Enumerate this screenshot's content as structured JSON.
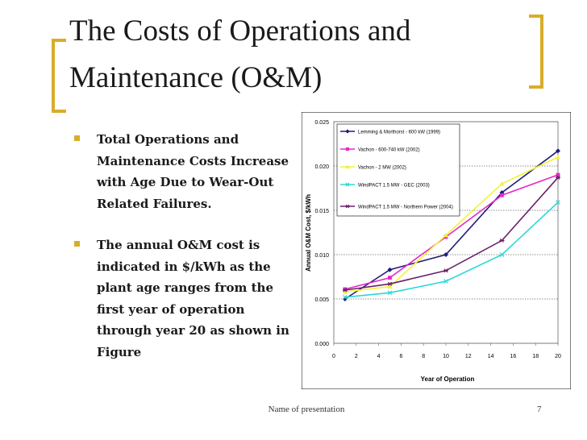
{
  "slide": {
    "title_line1": "The Costs of Operations and",
    "title_line2": "Maintenance (O&M)",
    "bullets": [
      "Total Operations and Maintenance Costs Increase with Age Due to Wear-Out Related Failures.",
      "The annual O&M cost is indicated in $/kWh as the plant age ranges from the first year of operation through year 20 as shown in Figure"
    ],
    "footer": "Name of presentation",
    "page_number": "7",
    "accent_color": "#d9ad2a"
  },
  "chart_data": {
    "type": "line",
    "title": "",
    "xlabel": "Year of Operation",
    "ylabel": "Annual O&M Cost, $/kWh",
    "xlim": [
      0,
      20
    ],
    "ylim": [
      0,
      0.025
    ],
    "x_ticks": [
      0,
      2,
      4,
      6,
      8,
      10,
      12,
      14,
      16,
      18,
      20
    ],
    "y_ticks": [
      0.0,
      0.005,
      0.01,
      0.015,
      0.02,
      0.025
    ],
    "y_tick_labels": [
      "0.000",
      "0.005",
      "0.010",
      "0.015",
      "0.020",
      "0.025"
    ],
    "grid": "horizontal",
    "legend_position": "top-left",
    "series": [
      {
        "name": "Lemming & Morthorst - 600 kW (1999)",
        "color": "#1f1f7a",
        "marker": "diamond",
        "x": [
          1,
          5,
          10,
          15,
          20
        ],
        "y": [
          0.005,
          0.0083,
          0.01,
          0.017,
          0.0217
        ]
      },
      {
        "name": "Vachon - 600-740 kW (2002)",
        "color": "#e628c8",
        "marker": "square",
        "x": [
          1,
          5,
          10,
          15,
          20
        ],
        "y": [
          0.0061,
          0.0074,
          0.012,
          0.0167,
          0.019
        ]
      },
      {
        "name": "Vachon - 2 MW (2002)",
        "color": "#f2f23a",
        "marker": "triangle",
        "x": [
          1,
          5,
          10,
          15,
          20
        ],
        "y": [
          0.0058,
          0.0064,
          0.0122,
          0.018,
          0.021
        ]
      },
      {
        "name": "WindPACT 1.5 MW - GEC (2003)",
        "color": "#2ad8d8",
        "marker": "x",
        "x": [
          1,
          5,
          10,
          15,
          20
        ],
        "y": [
          0.0052,
          0.0057,
          0.007,
          0.01,
          0.0159
        ]
      },
      {
        "name": "WindPACT 1.5 MW - Northern Power (2004)",
        "color": "#6a1f6a",
        "marker": "star",
        "x": [
          1,
          5,
          10,
          15,
          20
        ],
        "y": [
          0.006,
          0.0067,
          0.0082,
          0.0116,
          0.0187
        ]
      }
    ]
  }
}
